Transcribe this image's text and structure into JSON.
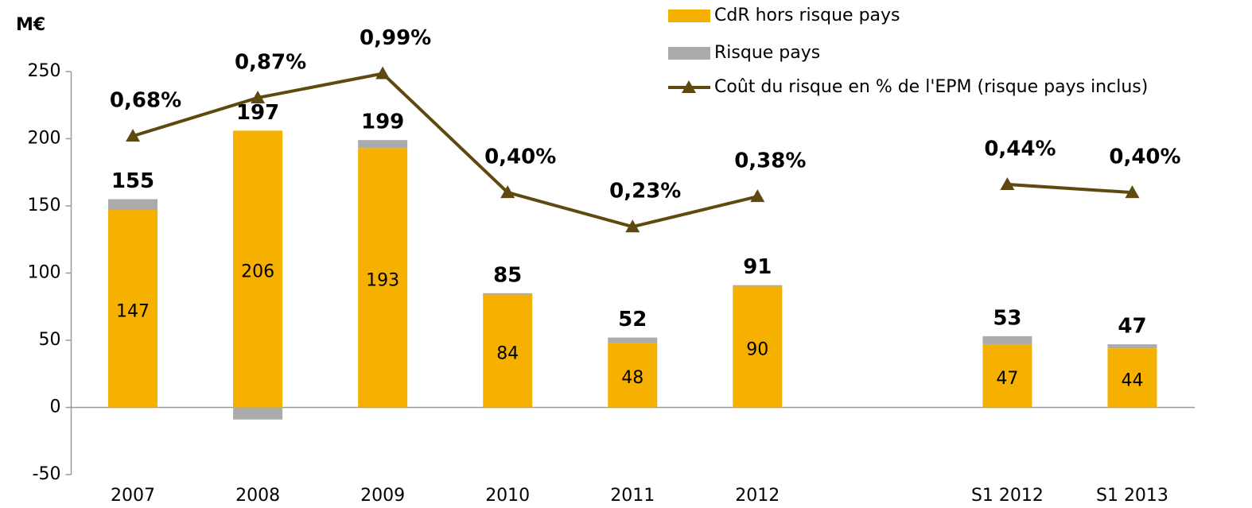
{
  "chart_data": {
    "type": "bar",
    "unit_label": "M€",
    "categories": [
      "2007",
      "2008",
      "2009",
      "2010",
      "2011",
      "2012",
      null,
      "S1 2012",
      "S1 2013"
    ],
    "series": [
      {
        "name": "CdR hors risque pays",
        "color": "#F5B000",
        "values": [
          147,
          206,
          193,
          84,
          48,
          90,
          null,
          47,
          44
        ]
      },
      {
        "name": "Risque pays",
        "color": "#ABABAB",
        "values": [
          8,
          -9,
          6,
          1,
          4,
          1,
          null,
          6,
          3
        ]
      },
      {
        "name": "Coût du risque en % de l'EPM (risque pays inclus)",
        "type": "line",
        "axis": "y2",
        "color": "#5E4A10",
        "values": [
          0.68,
          0.87,
          0.99,
          0.4,
          0.23,
          0.38,
          null,
          0.44,
          0.4
        ],
        "value_labels": [
          "0,68%",
          "0,87%",
          "0,99%",
          "0,40%",
          "0,23%",
          "0,38%",
          null,
          "0,44%",
          "0,40%"
        ]
      }
    ],
    "totals": [
      155,
      197,
      199,
      85,
      52,
      91,
      null,
      53,
      47
    ],
    "ylim": [
      -50,
      250
    ],
    "yticks": [
      -50,
      0,
      50,
      100,
      150,
      200,
      250
    ],
    "y2lim": [
      -1,
      1
    ],
    "legend": "top-right"
  }
}
